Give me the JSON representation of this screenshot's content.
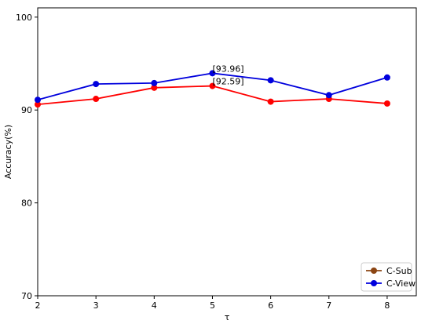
{
  "chart_data": {
    "type": "line",
    "xlabel": "τ",
    "ylabel": "Accuracy(%)",
    "x": [
      2,
      3,
      4,
      5,
      6,
      7,
      8
    ],
    "xlim": [
      2,
      8.5
    ],
    "ylim": [
      70,
      101
    ],
    "yticks": [
      70,
      80,
      90,
      100
    ],
    "xticks": [
      2,
      3,
      4,
      5,
      6,
      7,
      8
    ],
    "grid": false,
    "legend_position": "bottom-right",
    "series": [
      {
        "name": "C-Sub",
        "values": [
          90.6,
          91.2,
          92.4,
          92.59,
          90.9,
          91.2,
          90.7
        ],
        "color": "#ff0000",
        "legend_color": "#8b4513"
      },
      {
        "name": "C-View",
        "values": [
          91.1,
          92.8,
          92.9,
          93.96,
          93.2,
          91.6,
          93.5
        ],
        "color": "#0000dd",
        "legend_color": "#0000dd"
      }
    ],
    "annotations": [
      {
        "text": "[93.96]",
        "x": 5,
        "y": 93.96
      },
      {
        "text": "[92.59]",
        "x": 5,
        "y": 92.59
      }
    ]
  }
}
